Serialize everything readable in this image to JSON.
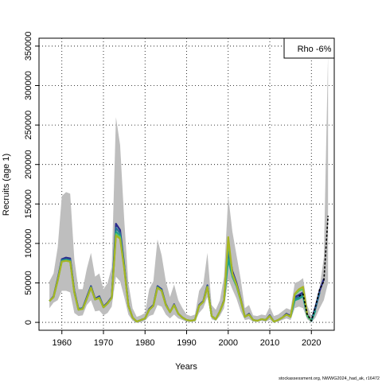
{
  "chart_data": {
    "type": "line",
    "xlabel": "Years",
    "ylabel": "Recruits (age 1)",
    "xlim": [
      1954.5,
      2025.5
    ],
    "ylim": [
      -10000,
      360000
    ],
    "x_ticks": [
      1960,
      1970,
      1980,
      1990,
      2000,
      2010,
      2020
    ],
    "x_tick_labels": [
      "1960",
      "1970",
      "1980",
      "1990",
      "2000",
      "2010",
      "2020"
    ],
    "y_ticks": [
      0,
      50000,
      100000,
      150000,
      200000,
      250000,
      300000,
      350000
    ],
    "y_tick_labels": [
      "0",
      "50000",
      "100000",
      "150000",
      "200000",
      "250000",
      "300000",
      "350000"
    ],
    "grid": true,
    "legend": {
      "position": "top-right",
      "text": "Rho -6%"
    },
    "footer": "stockassessment.org, NWWG2024_had_ak, r16472",
    "band": {
      "color": "#bebebe",
      "x": [
        1957,
        1958,
        1959,
        1960,
        1961,
        1962,
        1963,
        1964,
        1965,
        1966,
        1967,
        1968,
        1969,
        1970,
        1971,
        1972,
        1973,
        1974,
        1975,
        1976,
        1977,
        1978,
        1979,
        1980,
        1981,
        1982,
        1983,
        1984,
        1985,
        1986,
        1987,
        1988,
        1989,
        1990,
        1991,
        1992,
        1993,
        1994,
        1995,
        1996,
        1997,
        1998,
        1999,
        2000,
        2001,
        2002,
        2003,
        2004,
        2005,
        2006,
        2007,
        2008,
        2009,
        2010,
        2011,
        2012,
        2013,
        2014,
        2015,
        2016,
        2017,
        2018,
        2019,
        2020,
        2021,
        2022,
        2023,
        2024
      ],
      "upper": [
        52000,
        62000,
        95000,
        160000,
        165000,
        163000,
        80000,
        42000,
        42000,
        68000,
        88000,
        58000,
        62000,
        42000,
        50000,
        70000,
        260000,
        225000,
        130000,
        50000,
        18000,
        7000,
        9000,
        12000,
        42000,
        52000,
        105000,
        85000,
        52000,
        32000,
        48000,
        28000,
        18000,
        10000,
        8000,
        10000,
        40000,
        48000,
        88000,
        22000,
        16000,
        28000,
        58000,
        160000,
        115000,
        85000,
        55000,
        18000,
        22000,
        9000,
        8000,
        10000,
        9000,
        20000,
        8000,
        10000,
        14000,
        18000,
        16000,
        50000,
        52000,
        56000,
        22000,
        8000,
        25000,
        45000,
        82000,
        340000
      ],
      "lower": [
        18000,
        25000,
        28000,
        40000,
        40000,
        38000,
        12000,
        8000,
        9000,
        22000,
        28000,
        14000,
        15000,
        9000,
        12000,
        20000,
        58000,
        52000,
        32000,
        10000,
        2000,
        0,
        0,
        2000,
        8000,
        10000,
        22000,
        20000,
        10000,
        5000,
        10000,
        5000,
        3000,
        1000,
        1000,
        1000,
        12000,
        18000,
        32000,
        4000,
        2000,
        8000,
        18000,
        55000,
        42000,
        30000,
        14000,
        3000,
        4000,
        1000,
        1000,
        2000,
        1000,
        3000,
        0,
        1000,
        3000,
        5000,
        3000,
        18000,
        20000,
        18000,
        4000,
        0,
        6000,
        18000,
        28000,
        50000
      ]
    },
    "series": [
      {
        "color": "#2b2d8e",
        "x": [
          1957,
          1958,
          1959,
          1960,
          1961,
          1962,
          1963,
          1964,
          1965,
          1966,
          1967,
          1968,
          1969,
          1970,
          1971,
          1972,
          1973,
          1974,
          1975,
          1976,
          1977,
          1978,
          1979,
          1980,
          1981,
          1982,
          1983,
          1984,
          1985,
          1986,
          1987,
          1988,
          1989,
          1990,
          1991,
          1992,
          1993,
          1994,
          1995,
          1996,
          1997,
          1998,
          1999,
          2000,
          2001,
          2002,
          2003,
          2004,
          2005,
          2006,
          2007,
          2008,
          2009,
          2010,
          2011,
          2012,
          2013,
          2014,
          2015,
          2016,
          2017,
          2018,
          2019,
          2020,
          2021,
          2022,
          2023
        ],
        "y": [
          27000,
          33000,
          55000,
          80000,
          82000,
          81000,
          40000,
          17000,
          18000,
          32000,
          46000,
          30000,
          33000,
          20000,
          25000,
          32000,
          125000,
          117000,
          73000,
          22000,
          6000,
          1000,
          3000,
          5000,
          17000,
          22000,
          46000,
          42000,
          23000,
          13000,
          23000,
          11000,
          6000,
          3000,
          2000,
          3000,
          22000,
          27000,
          47000,
          8000,
          4000,
          14000,
          28000,
          95000,
          65000,
          50000,
          30000,
          7000,
          11000,
          3000,
          2000,
          4000,
          3000,
          9000,
          1000,
          3000,
          6000,
          11000,
          8000,
          32000,
          35000,
          38000,
          10000,
          2000,
          20000,
          40000,
          55000
        ]
      },
      {
        "color": "#2a6f97",
        "x": [
          1957,
          1958,
          1959,
          1960,
          1961,
          1962,
          1963,
          1964,
          1965,
          1966,
          1967,
          1968,
          1969,
          1970,
          1971,
          1972,
          1973,
          1974,
          1975,
          1976,
          1977,
          1978,
          1979,
          1980,
          1981,
          1982,
          1983,
          1984,
          1985,
          1986,
          1987,
          1988,
          1989,
          1990,
          1991,
          1992,
          1993,
          1994,
          1995,
          1996,
          1997,
          1998,
          1999,
          2000,
          2001,
          2002,
          2003,
          2004,
          2005,
          2006,
          2007,
          2008,
          2009,
          2010,
          2011,
          2012,
          2013,
          2014,
          2015,
          2016,
          2017,
          2018,
          2019,
          2020,
          2021,
          2022
        ],
        "y": [
          27000,
          32000,
          54000,
          79000,
          80000,
          79000,
          39000,
          17000,
          18000,
          31000,
          45000,
          29000,
          32000,
          20000,
          24000,
          31000,
          120000,
          113000,
          71000,
          21000,
          6000,
          1000,
          3000,
          5000,
          16000,
          21000,
          45000,
          41000,
          22000,
          13000,
          22000,
          11000,
          6000,
          3000,
          2000,
          3000,
          21000,
          26000,
          46000,
          8000,
          4000,
          14000,
          27000,
          88000,
          62000,
          48000,
          29000,
          7000,
          10000,
          3000,
          2000,
          4000,
          3000,
          8000,
          1000,
          3000,
          6000,
          10000,
          7000,
          30000,
          32000,
          36000,
          9000,
          2000,
          18000,
          38000
        ]
      },
      {
        "color": "#1f9e89",
        "x": [
          1957,
          1958,
          1959,
          1960,
          1961,
          1962,
          1963,
          1964,
          1965,
          1966,
          1967,
          1968,
          1969,
          1970,
          1971,
          1972,
          1973,
          1974,
          1975,
          1976,
          1977,
          1978,
          1979,
          1980,
          1981,
          1982,
          1983,
          1984,
          1985,
          1986,
          1987,
          1988,
          1989,
          1990,
          1991,
          1992,
          1993,
          1994,
          1995,
          1996,
          1997,
          1998,
          1999,
          2000,
          2001,
          2002,
          2003,
          2004,
          2005,
          2006,
          2007,
          2008,
          2009,
          2010,
          2011,
          2012,
          2013,
          2014,
          2015,
          2016,
          2017,
          2018,
          2019,
          2020,
          2021
        ],
        "y": [
          27000,
          32000,
          53000,
          78000,
          79000,
          78000,
          38000,
          16000,
          17000,
          30000,
          44000,
          29000,
          31000,
          19000,
          24000,
          31000,
          115000,
          110000,
          70000,
          21000,
          6000,
          1000,
          3000,
          5000,
          16000,
          21000,
          44000,
          40000,
          22000,
          13000,
          22000,
          11000,
          6000,
          3000,
          2000,
          3000,
          21000,
          26000,
          45000,
          8000,
          4000,
          14000,
          27000,
          80000,
          58000,
          46000,
          28000,
          7000,
          10000,
          3000,
          2000,
          4000,
          3000,
          8000,
          1000,
          3000,
          6000,
          10000,
          7000,
          28000,
          30000,
          33000,
          8000,
          2000,
          15000
        ]
      },
      {
        "color": "#5ec962",
        "x": [
          1957,
          1958,
          1959,
          1960,
          1961,
          1962,
          1963,
          1964,
          1965,
          1966,
          1967,
          1968,
          1969,
          1970,
          1971,
          1972,
          1973,
          1974,
          1975,
          1976,
          1977,
          1978,
          1979,
          1980,
          1981,
          1982,
          1983,
          1984,
          1985,
          1986,
          1987,
          1988,
          1989,
          1990,
          1991,
          1992,
          1993,
          1994,
          1995,
          1996,
          1997,
          1998,
          1999,
          2000,
          2001,
          2002,
          2003,
          2004,
          2005,
          2006,
          2007,
          2008,
          2009,
          2010,
          2011,
          2012,
          2013,
          2014,
          2015,
          2016,
          2017,
          2018,
          2019,
          2020
        ],
        "y": [
          27000,
          32000,
          53000,
          77000,
          78000,
          77000,
          38000,
          16000,
          17000,
          30000,
          44000,
          29000,
          31000,
          19000,
          24000,
          31000,
          112000,
          108000,
          69000,
          21000,
          6000,
          1000,
          3000,
          5000,
          16000,
          21000,
          44000,
          40000,
          22000,
          13000,
          22000,
          11000,
          6000,
          3000,
          2000,
          3000,
          21000,
          26000,
          45000,
          8000,
          4000,
          14000,
          27000,
          102000,
          60000,
          47000,
          28000,
          7000,
          10000,
          3000,
          2000,
          4000,
          3000,
          8000,
          1000,
          3000,
          6000,
          10000,
          7000,
          35000,
          40000,
          42000,
          9000,
          2000
        ]
      },
      {
        "color": "#a8b522",
        "x": [
          1957,
          1958,
          1959,
          1960,
          1961,
          1962,
          1963,
          1964,
          1965,
          1966,
          1967,
          1968,
          1969,
          1970,
          1971,
          1972,
          1973,
          1974,
          1975,
          1976,
          1977,
          1978,
          1979,
          1980,
          1981,
          1982,
          1983,
          1984,
          1985,
          1986,
          1987,
          1988,
          1989,
          1990,
          1991,
          1992,
          1993,
          1994,
          1995,
          1996,
          1997,
          1998,
          1999,
          2000,
          2001,
          2002,
          2003,
          2004,
          2005,
          2006,
          2007,
          2008,
          2009,
          2010,
          2011,
          2012,
          2013,
          2014,
          2015,
          2016,
          2017,
          2018,
          2019
        ],
        "y": [
          27000,
          32000,
          53000,
          77000,
          78000,
          77000,
          38000,
          16000,
          17000,
          30000,
          44000,
          29000,
          31000,
          19000,
          24000,
          31000,
          110000,
          106000,
          68000,
          21000,
          6000,
          1000,
          3000,
          5000,
          16000,
          21000,
          44000,
          40000,
          22000,
          13000,
          22000,
          11000,
          6000,
          3000,
          2000,
          3000,
          21000,
          26000,
          45000,
          8000,
          4000,
          14000,
          27000,
          108000,
          62000,
          48000,
          29000,
          7000,
          10000,
          3000,
          2000,
          4000,
          3000,
          8000,
          1000,
          3000,
          6000,
          10000,
          7000,
          36000,
          42000,
          45000,
          10000
        ]
      },
      {
        "color": "#000000",
        "dashed": true,
        "x": [
          2017,
          2018,
          2019,
          2020,
          2021,
          2022,
          2023,
          2024
        ],
        "y": [
          33000,
          36000,
          10000,
          2000,
          20000,
          42000,
          52000,
          135000
        ]
      }
    ]
  }
}
